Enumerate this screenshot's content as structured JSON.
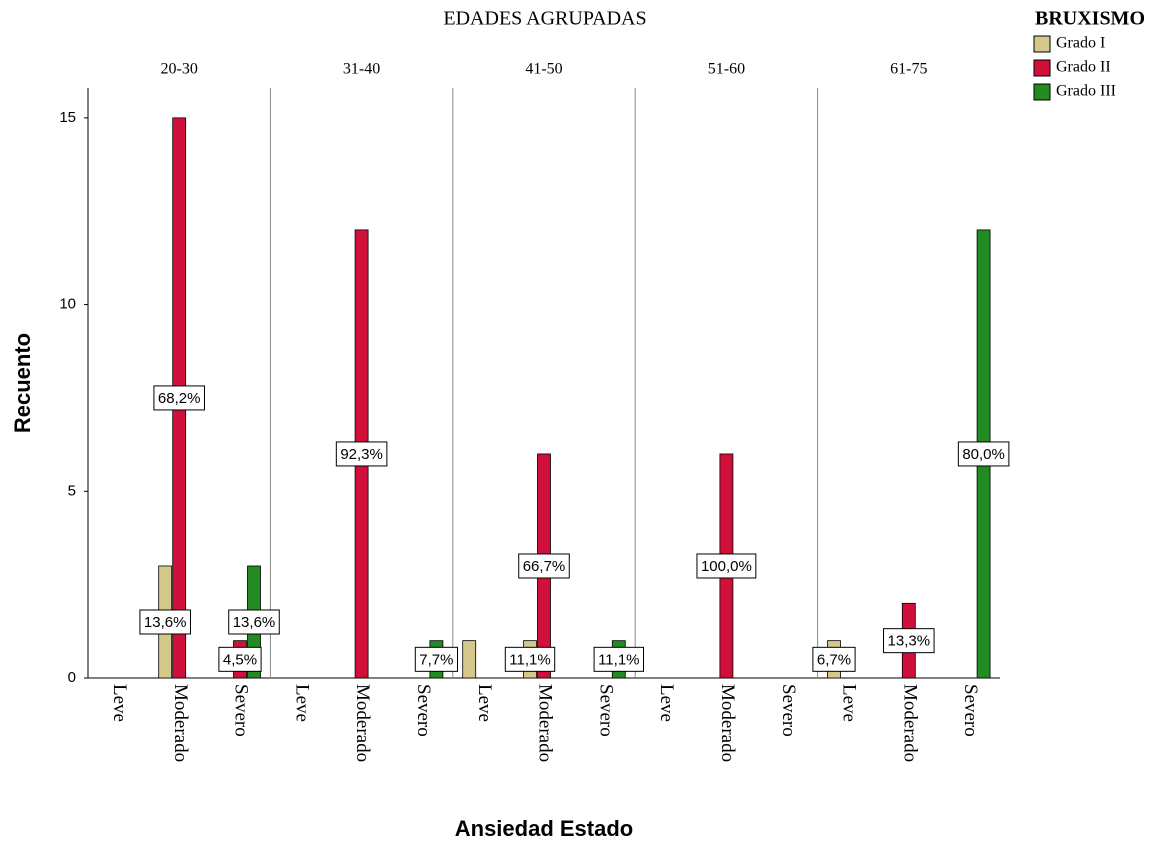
{
  "chart_data": {
    "type": "bar",
    "title": "EDADES AGRUPADAS",
    "legend_title": "BRUXISMO",
    "legend": "right",
    "y_label": "Recuento",
    "x_label": "Ansiedad Estado",
    "panels": [
      "20-30",
      "31-40",
      "41-50",
      "51-60",
      "61-75"
    ],
    "categories": [
      "Leve",
      "Moderado",
      "Severo"
    ],
    "ylim": [
      0,
      15.8
    ],
    "yticks": [
      0,
      5,
      10,
      15
    ],
    "series": [
      {
        "name": "Grado I",
        "color": "#d4c98a",
        "values": [
          [
            0,
            3,
            0
          ],
          [
            0,
            0,
            0
          ],
          [
            1,
            1,
            0
          ],
          [
            0,
            0,
            0
          ],
          [
            1,
            0,
            0
          ]
        ],
        "value_labels": [
          [
            null,
            "13,6%",
            null
          ],
          [
            null,
            null,
            null
          ],
          [
            null,
            "11,1%",
            null
          ],
          [
            null,
            null,
            null
          ],
          [
            "6,7%",
            null,
            null
          ]
        ]
      },
      {
        "name": "Grado II",
        "color": "#d0103a",
        "values": [
          [
            0,
            15,
            1
          ],
          [
            0,
            12,
            0
          ],
          [
            0,
            6,
            0
          ],
          [
            0,
            6,
            0
          ],
          [
            0,
            2,
            0
          ]
        ],
        "value_labels": [
          [
            null,
            "68,2%",
            "4,5%"
          ],
          [
            null,
            "92,3%",
            null
          ],
          [
            null,
            "66,7%",
            null
          ],
          [
            null,
            "100,0%",
            null
          ],
          [
            null,
            "13,3%",
            null
          ]
        ]
      },
      {
        "name": "Grado III",
        "color": "#228b22",
        "values": [
          [
            0,
            0,
            3
          ],
          [
            0,
            0,
            1
          ],
          [
            0,
            0,
            1
          ],
          [
            0,
            0,
            0
          ],
          [
            0,
            0,
            12
          ]
        ],
        "value_labels": [
          [
            null,
            null,
            "13,6%"
          ],
          [
            null,
            null,
            "7,7%"
          ],
          [
            null,
            null,
            "11,1%"
          ],
          [
            null,
            null,
            null
          ],
          [
            null,
            null,
            "80,0%"
          ]
        ]
      }
    ]
  }
}
